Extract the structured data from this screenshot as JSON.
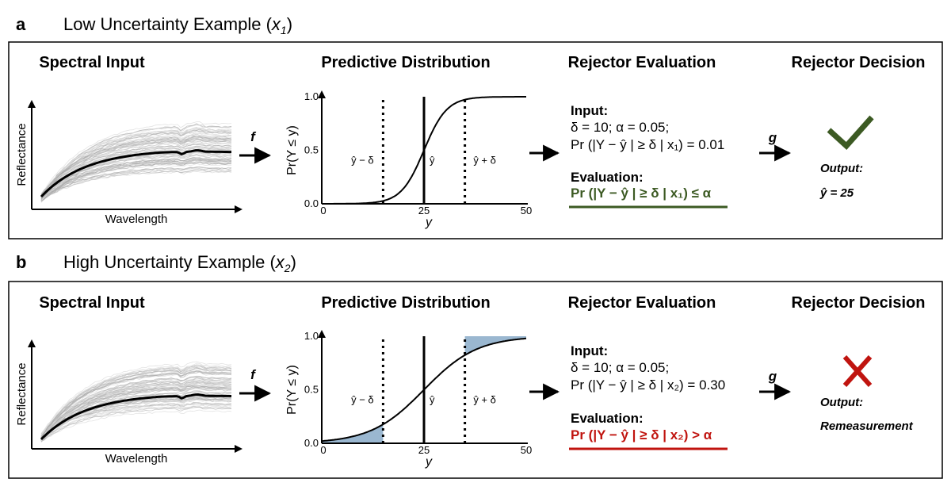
{
  "panels": [
    {
      "letter": "a",
      "title": "Low Uncertainty Example",
      "x_base": "x",
      "x_sub": "1",
      "sections": {
        "spectral": "Spectral Input",
        "predictive": "Predictive Distribution",
        "evaluation": "Rejector Evaluation",
        "decision": "Rejector Decision"
      },
      "spectral_axes": {
        "ylabel": "Reflectance",
        "xlabel": "Wavelength"
      },
      "f_label": "f",
      "g_label": "g",
      "chart_data": {
        "type": "line",
        "xlabel": "y",
        "ylabel": "Pr(Y ≤ y)",
        "xlim": [
          0,
          50
        ],
        "ylim": [
          0.0,
          1.0
        ],
        "x_ticks": [
          "0",
          "25",
          "50"
        ],
        "y_ticks": [
          "0.0",
          "0.5",
          "1.0"
        ],
        "mean": 25,
        "spread": 2.8,
        "delta": 10,
        "shaded_tails": false,
        "series": [
          {
            "x": [
              0,
              10,
              15,
              18,
              20,
              22,
              24,
              25,
              26,
              28,
              30,
              32,
              35,
              40,
              50
            ],
            "values": [
              0.0,
              0.0,
              0.0,
              0.01,
              0.04,
              0.14,
              0.36,
              0.5,
              0.64,
              0.86,
              0.96,
              0.99,
              1.0,
              1.0,
              1.0
            ]
          }
        ],
        "annotations": [
          "ŷ − δ",
          "ŷ",
          "ŷ + δ"
        ]
      },
      "evaluation": {
        "input_label": "Input:",
        "params": "δ = 10; α = 0.05;",
        "prob": "Pr (|Y − ŷ | ≥ δ | x₁) = 0.01",
        "eval_label": "Evaluation:",
        "result": "Pr (|Y − ŷ | ≥ δ | x₁) ≤ α",
        "color": "#3c5a23"
      },
      "decision": {
        "icon": "check-icon",
        "output_label": "Output:",
        "output_value": "ŷ = 25",
        "color": "#3c5a23"
      }
    },
    {
      "letter": "b",
      "title": "High Uncertainty Example",
      "x_base": "x",
      "x_sub": "2",
      "sections": {
        "spectral": "Spectral Input",
        "predictive": "Predictive Distribution",
        "evaluation": "Rejector Evaluation",
        "decision": "Rejector Decision"
      },
      "spectral_axes": {
        "ylabel": "Reflectance",
        "xlabel": "Wavelength"
      },
      "f_label": "f",
      "g_label": "g",
      "chart_data": {
        "type": "line",
        "xlabel": "y",
        "ylabel": "Pr(Y ≤ y)",
        "xlim": [
          0,
          50
        ],
        "ylim": [
          0.0,
          1.0
        ],
        "x_ticks": [
          "0",
          "25",
          "50"
        ],
        "y_ticks": [
          "0.0",
          "0.5",
          "1.0"
        ],
        "mean": 25,
        "spread": 6.5,
        "delta": 10,
        "shaded_tails": true,
        "tail_color": "#9ab7d0",
        "series": [
          {
            "x": [
              0,
              5,
              10,
              15,
              20,
              25,
              30,
              35,
              40,
              45,
              50
            ],
            "values": [
              0.02,
              0.04,
              0.08,
              0.15,
              0.32,
              0.5,
              0.68,
              0.85,
              0.92,
              0.96,
              0.98
            ]
          }
        ],
        "annotations": [
          "ŷ − δ",
          "ŷ",
          "ŷ + δ"
        ]
      },
      "evaluation": {
        "input_label": "Input:",
        "params": "δ = 10; α = 0.05;",
        "prob": "Pr (|Y − ŷ | ≥ δ | x₂) = 0.30",
        "eval_label": "Evaluation:",
        "result": "Pr (|Y − ŷ | ≥ δ | x₂) > α",
        "color": "#c0140f"
      },
      "decision": {
        "icon": "cross-icon",
        "output_label": "Output:",
        "output_value": "Remeasurement",
        "color": "#c0140f"
      }
    }
  ]
}
